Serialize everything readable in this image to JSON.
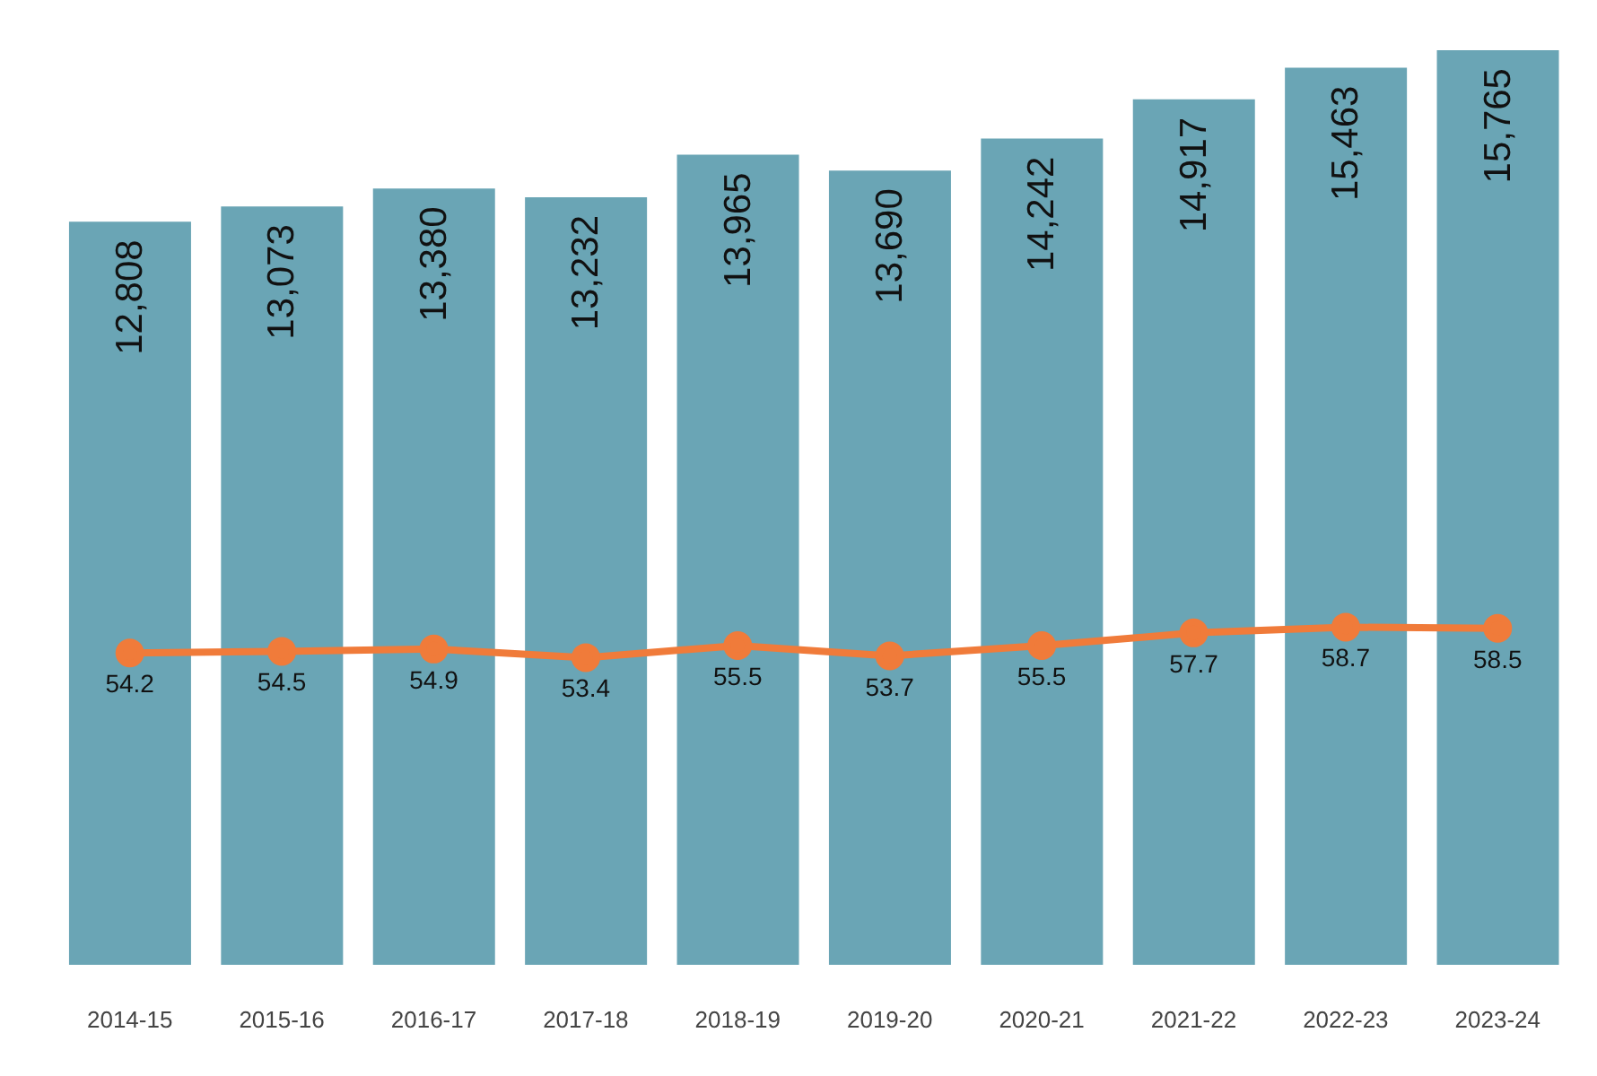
{
  "chart_data": {
    "type": "bar",
    "categories": [
      "2014-15",
      "2015-16",
      "2016-17",
      "2017-18",
      "2018-19",
      "2019-20",
      "2020-21",
      "2021-22",
      "2022-23",
      "2023-24"
    ],
    "series": [
      {
        "color": "#6aa5b5",
        "values": [
          12808,
          13073,
          13380,
          13232,
          13965,
          13690,
          14242,
          14917,
          15463,
          15765
        ],
        "value_labels": [
          "12,808",
          "13,073",
          "13,380",
          "13,232",
          "13,965",
          "13,690",
          "14,242",
          "14,917",
          "15,463",
          "15,765"
        ]
      },
      {
        "type": "line",
        "axis": "y2",
        "color": "#f07b3a",
        "values": [
          54.2,
          54.5,
          54.9,
          53.4,
          55.5,
          53.7,
          55.5,
          57.7,
          58.7,
          58.5
        ]
      }
    ],
    "ylim": [
      0,
      15765
    ],
    "y2lim": [
      0,
      159
    ],
    "data_labels": true,
    "tick_labels": "x",
    "marker": "circle",
    "line_style": "solid"
  }
}
